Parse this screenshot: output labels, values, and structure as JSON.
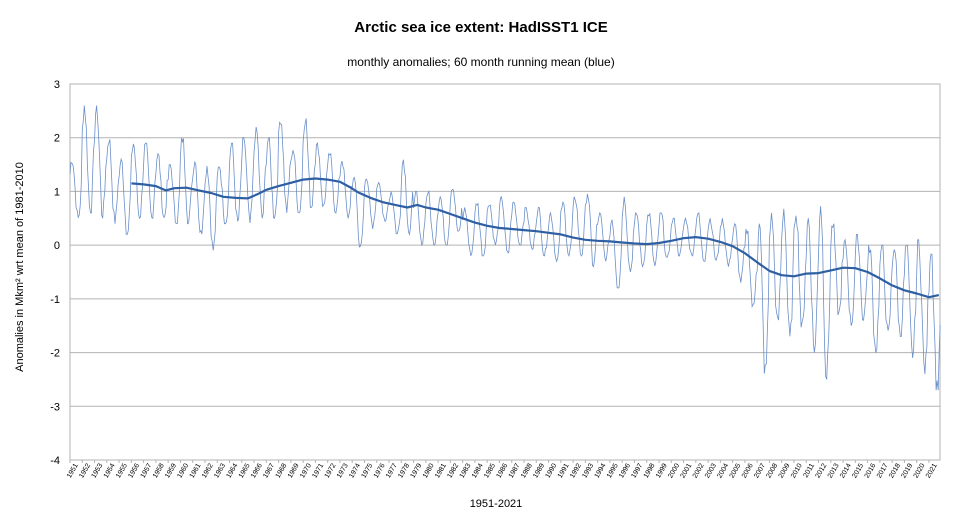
{
  "chart_data": {
    "type": "line",
    "title": "Arctic sea ice extent: HadISST1 ICE",
    "subtitle": "monthly anomalies; 60 month running mean (blue)",
    "xlabel": "1951-2021",
    "ylabel": "Anomalies in Mkm² wrt mean of 1981-2010",
    "ylim": [
      -4,
      3
    ],
    "yticks": [
      "3",
      "2",
      "1",
      "0",
      "-1",
      "-2",
      "-3",
      "-4"
    ],
    "xlim": [
      1951,
      2021.9
    ],
    "grid": true,
    "x_categories": [
      "1951",
      "1952",
      "1953",
      "1954",
      "1955",
      "1956",
      "1957",
      "1958",
      "1959",
      "1960",
      "1961",
      "1962",
      "1963",
      "1964",
      "1965",
      "1966",
      "1967",
      "1968",
      "1969",
      "1970",
      "1971",
      "1972",
      "1973",
      "1974",
      "1975",
      "1976",
      "1977",
      "1978",
      "1979",
      "1980",
      "1981",
      "1982",
      "1983",
      "1984",
      "1985",
      "1986",
      "1987",
      "1988",
      "1989",
      "1990",
      "1991",
      "1992",
      "1993",
      "1994",
      "1995",
      "1996",
      "1997",
      "1998",
      "1999",
      "2000",
      "2001",
      "2002",
      "2003",
      "2004",
      "2005",
      "2006",
      "2007",
      "2008",
      "2009",
      "2010",
      "2011",
      "2012",
      "2013",
      "2014",
      "2015",
      "2016",
      "2017",
      "2018",
      "2019",
      "2020",
      "2021"
    ],
    "series": [
      {
        "name": "monthly anomalies",
        "color": "#6a8fc9",
        "seasonal_envelope": [
          {
            "year": 1951,
            "hi": 1.6,
            "lo": 0.5
          },
          {
            "year": 1952,
            "hi": 2.6,
            "lo": 0.6
          },
          {
            "year": 1953,
            "hi": 2.6,
            "lo": 0.5
          },
          {
            "year": 1954,
            "hi": 2.0,
            "lo": 0.4
          },
          {
            "year": 1955,
            "hi": 1.6,
            "lo": 0.2
          },
          {
            "year": 1956,
            "hi": 1.9,
            "lo": 0.5
          },
          {
            "year": 1957,
            "hi": 1.9,
            "lo": 0.5
          },
          {
            "year": 1958,
            "hi": 1.7,
            "lo": 0.5
          },
          {
            "year": 1959,
            "hi": 1.5,
            "lo": 0.4
          },
          {
            "year": 1960,
            "hi": 2.0,
            "lo": 0.4
          },
          {
            "year": 1961,
            "hi": 1.6,
            "lo": 0.2
          },
          {
            "year": 1962,
            "hi": 1.5,
            "lo": -0.1
          },
          {
            "year": 1963,
            "hi": 1.5,
            "lo": 0.4
          },
          {
            "year": 1964,
            "hi": 1.9,
            "lo": 0.4
          },
          {
            "year": 1965,
            "hi": 2.0,
            "lo": 0.4
          },
          {
            "year": 1966,
            "hi": 2.2,
            "lo": 0.5
          },
          {
            "year": 1967,
            "hi": 2.0,
            "lo": 0.5
          },
          {
            "year": 1968,
            "hi": 2.4,
            "lo": 0.6
          },
          {
            "year": 1969,
            "hi": 1.8,
            "lo": 0.6
          },
          {
            "year": 1970,
            "hi": 2.4,
            "lo": 0.7
          },
          {
            "year": 1971,
            "hi": 1.9,
            "lo": 0.7
          },
          {
            "year": 1972,
            "hi": 1.7,
            "lo": 0.6
          },
          {
            "year": 1973,
            "hi": 1.6,
            "lo": 0.5
          },
          {
            "year": 1974,
            "hi": 1.3,
            "lo": -0.1
          },
          {
            "year": 1975,
            "hi": 1.3,
            "lo": 0.3
          },
          {
            "year": 1976,
            "hi": 1.2,
            "lo": 0.4
          },
          {
            "year": 1977,
            "hi": 1.0,
            "lo": 0.2
          },
          {
            "year": 1978,
            "hi": 1.6,
            "lo": 0.2
          },
          {
            "year": 1979,
            "hi": 1.0,
            "lo": 0.0
          },
          {
            "year": 1980,
            "hi": 1.0,
            "lo": 0.0
          },
          {
            "year": 1981,
            "hi": 0.9,
            "lo": 0.0
          },
          {
            "year": 1982,
            "hi": 1.1,
            "lo": 0.2
          },
          {
            "year": 1983,
            "hi": 0.7,
            "lo": -0.2
          },
          {
            "year": 1984,
            "hi": 0.8,
            "lo": -0.2
          },
          {
            "year": 1985,
            "hi": 0.8,
            "lo": 0.0
          },
          {
            "year": 1986,
            "hi": 0.9,
            "lo": -0.2
          },
          {
            "year": 1987,
            "hi": 0.8,
            "lo": 0.0
          },
          {
            "year": 1988,
            "hi": 0.7,
            "lo": -0.1
          },
          {
            "year": 1989,
            "hi": 0.7,
            "lo": -0.2
          },
          {
            "year": 1990,
            "hi": 0.6,
            "lo": -0.3
          },
          {
            "year": 1991,
            "hi": 0.8,
            "lo": -0.2
          },
          {
            "year": 1992,
            "hi": 0.9,
            "lo": -0.2
          },
          {
            "year": 1993,
            "hi": 1.0,
            "lo": -0.4
          },
          {
            "year": 1994,
            "hi": 0.6,
            "lo": -0.3
          },
          {
            "year": 1995,
            "hi": 0.5,
            "lo": -0.8
          },
          {
            "year": 1996,
            "hi": 0.9,
            "lo": -0.5
          },
          {
            "year": 1997,
            "hi": 0.6,
            "lo": -0.4
          },
          {
            "year": 1998,
            "hi": 0.6,
            "lo": -0.4
          },
          {
            "year": 1999,
            "hi": 0.6,
            "lo": -0.3
          },
          {
            "year": 2000,
            "hi": 0.5,
            "lo": -0.2
          },
          {
            "year": 2001,
            "hi": 0.5,
            "lo": -0.2
          },
          {
            "year": 2002,
            "hi": 0.6,
            "lo": -0.3
          },
          {
            "year": 2003,
            "hi": 0.5,
            "lo": -0.3
          },
          {
            "year": 2004,
            "hi": 0.5,
            "lo": -0.4
          },
          {
            "year": 2005,
            "hi": 0.4,
            "lo": -0.7
          },
          {
            "year": 2006,
            "hi": 0.3,
            "lo": -1.2
          },
          {
            "year": 2007,
            "hi": 0.4,
            "lo": -2.4
          },
          {
            "year": 2008,
            "hi": 0.6,
            "lo": -1.5
          },
          {
            "year": 2009,
            "hi": 0.7,
            "lo": -1.8
          },
          {
            "year": 2010,
            "hi": 0.7,
            "lo": -1.6
          },
          {
            "year": 2011,
            "hi": 0.5,
            "lo": -2.0
          },
          {
            "year": 2012,
            "hi": 0.8,
            "lo": -2.5
          },
          {
            "year": 2013,
            "hi": 0.4,
            "lo": -1.3
          },
          {
            "year": 2014,
            "hi": 0.1,
            "lo": -1.5
          },
          {
            "year": 2015,
            "hi": 0.2,
            "lo": -1.4
          },
          {
            "year": 2016,
            "hi": 0.0,
            "lo": -2.0
          },
          {
            "year": 2017,
            "hi": 0.0,
            "lo": -1.7
          },
          {
            "year": 2018,
            "hi": 0.0,
            "lo": -1.7
          },
          {
            "year": 2019,
            "hi": 0.0,
            "lo": -2.1
          },
          {
            "year": 2020,
            "hi": 0.1,
            "lo": -2.4
          },
          {
            "year": 2021,
            "hi": 0.0,
            "lo": -2.7
          }
        ]
      },
      {
        "name": "60 month running mean",
        "color": "#2e5fa3",
        "points": [
          {
            "x": 1956.0,
            "y": 1.15
          },
          {
            "x": 1957.0,
            "y": 1.13
          },
          {
            "x": 1958.0,
            "y": 1.1
          },
          {
            "x": 1958.8,
            "y": 1.02
          },
          {
            "x": 1959.5,
            "y": 1.06
          },
          {
            "x": 1960.5,
            "y": 1.07
          },
          {
            "x": 1961.5,
            "y": 1.02
          },
          {
            "x": 1962.5,
            "y": 0.97
          },
          {
            "x": 1963.5,
            "y": 0.9
          },
          {
            "x": 1964.5,
            "y": 0.88
          },
          {
            "x": 1965.5,
            "y": 0.87
          },
          {
            "x": 1966.3,
            "y": 0.95
          },
          {
            "x": 1967.0,
            "y": 1.03
          },
          {
            "x": 1968.0,
            "y": 1.1
          },
          {
            "x": 1969.0,
            "y": 1.16
          },
          {
            "x": 1970.0,
            "y": 1.22
          },
          {
            "x": 1971.0,
            "y": 1.24
          },
          {
            "x": 1972.0,
            "y": 1.22
          },
          {
            "x": 1973.0,
            "y": 1.18
          },
          {
            "x": 1973.8,
            "y": 1.08
          },
          {
            "x": 1974.5,
            "y": 0.98
          },
          {
            "x": 1975.5,
            "y": 0.88
          },
          {
            "x": 1976.5,
            "y": 0.8
          },
          {
            "x": 1977.5,
            "y": 0.75
          },
          {
            "x": 1978.5,
            "y": 0.7
          },
          {
            "x": 1979.3,
            "y": 0.75
          },
          {
            "x": 1980.0,
            "y": 0.7
          },
          {
            "x": 1981.0,
            "y": 0.66
          },
          {
            "x": 1982.0,
            "y": 0.58
          },
          {
            "x": 1983.0,
            "y": 0.5
          },
          {
            "x": 1984.0,
            "y": 0.42
          },
          {
            "x": 1985.0,
            "y": 0.36
          },
          {
            "x": 1986.0,
            "y": 0.32
          },
          {
            "x": 1987.0,
            "y": 0.3
          },
          {
            "x": 1988.0,
            "y": 0.28
          },
          {
            "x": 1989.0,
            "y": 0.26
          },
          {
            "x": 1990.0,
            "y": 0.23
          },
          {
            "x": 1991.0,
            "y": 0.2
          },
          {
            "x": 1992.0,
            "y": 0.14
          },
          {
            "x": 1993.0,
            "y": 0.1
          },
          {
            "x": 1994.0,
            "y": 0.08
          },
          {
            "x": 1995.0,
            "y": 0.07
          },
          {
            "x": 1996.0,
            "y": 0.05
          },
          {
            "x": 1997.0,
            "y": 0.03
          },
          {
            "x": 1998.0,
            "y": 0.02
          },
          {
            "x": 1999.0,
            "y": 0.04
          },
          {
            "x": 2000.0,
            "y": 0.08
          },
          {
            "x": 2001.0,
            "y": 0.13
          },
          {
            "x": 2002.0,
            "y": 0.15
          },
          {
            "x": 2003.0,
            "y": 0.12
          },
          {
            "x": 2004.0,
            "y": 0.06
          },
          {
            "x": 2005.0,
            "y": -0.02
          },
          {
            "x": 2006.0,
            "y": -0.15
          },
          {
            "x": 2007.0,
            "y": -0.32
          },
          {
            "x": 2008.0,
            "y": -0.48
          },
          {
            "x": 2009.0,
            "y": -0.56
          },
          {
            "x": 2010.0,
            "y": -0.58
          },
          {
            "x": 2011.0,
            "y": -0.53
          },
          {
            "x": 2012.0,
            "y": -0.52
          },
          {
            "x": 2013.0,
            "y": -0.47
          },
          {
            "x": 2014.0,
            "y": -0.42
          },
          {
            "x": 2015.0,
            "y": -0.43
          },
          {
            "x": 2016.0,
            "y": -0.5
          },
          {
            "x": 2017.0,
            "y": -0.62
          },
          {
            "x": 2018.0,
            "y": -0.75
          },
          {
            "x": 2019.0,
            "y": -0.84
          },
          {
            "x": 2020.0,
            "y": -0.9
          },
          {
            "x": 2021.0,
            "y": -0.97
          },
          {
            "x": 2021.8,
            "y": -0.93
          }
        ]
      }
    ]
  },
  "colors": {
    "monthly_line": "#6a8fc9",
    "running_mean_line": "#2e5fa3",
    "gridline": "#b3b3b3",
    "axis": "#b3b3b3"
  }
}
